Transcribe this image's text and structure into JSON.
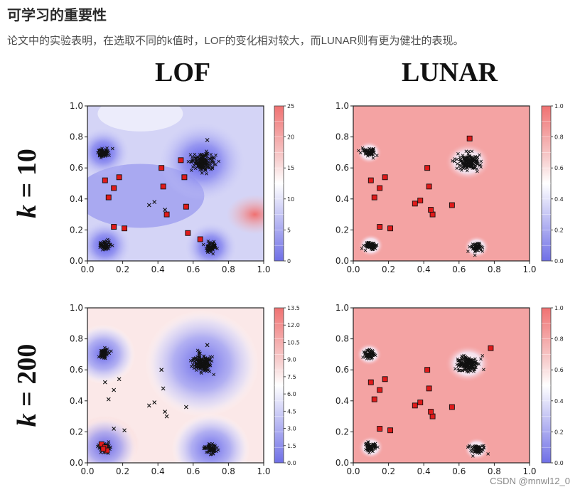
{
  "heading": "可学习的重要性",
  "paragraph": "论文中的实验表明，在选取不同的k值时，LOF的变化相对较大，而LUNAR则有更为健壮的表现。",
  "columns": [
    "LOF",
    "LUNAR"
  ],
  "rows": [
    {
      "k_symbol": "k",
      "eq": "= 10"
    },
    {
      "k_symbol": "k",
      "eq": "= 200"
    }
  ],
  "watermark": "CSDN @mnwl12_0",
  "chart_data": [
    {
      "type": "heatmap",
      "title": "LOF",
      "row": "k = 10",
      "xlim": [
        0,
        1
      ],
      "ylim": [
        0,
        1
      ],
      "xticks": [
        "0.0",
        "0.2",
        "0.4",
        "0.6",
        "0.8",
        "1.0"
      ],
      "yticks": [
        "0.0",
        "0.2",
        "0.4",
        "0.6",
        "0.8",
        "1.0"
      ],
      "colorbar_ticks": [
        "0",
        "5",
        "10",
        "15",
        "20",
        "25"
      ],
      "colorbar_range": [
        0,
        25
      ],
      "clusters": [
        [
          0.09,
          0.7
        ],
        [
          0.65,
          0.64
        ],
        [
          0.1,
          0.1
        ],
        [
          0.7,
          0.09
        ]
      ],
      "outliers": [
        [
          0.1,
          0.52
        ],
        [
          0.12,
          0.41
        ],
        [
          0.15,
          0.47
        ],
        [
          0.18,
          0.54
        ],
        [
          0.15,
          0.22
        ],
        [
          0.21,
          0.21
        ],
        [
          0.42,
          0.6
        ],
        [
          0.43,
          0.48
        ],
        [
          0.45,
          0.3
        ],
        [
          0.53,
          0.65
        ],
        [
          0.56,
          0.35
        ],
        [
          0.55,
          0.54
        ],
        [
          0.57,
          0.18
        ],
        [
          0.64,
          0.14
        ]
      ],
      "scatter_x": [
        [
          0.35,
          0.36
        ],
        [
          0.38,
          0.38
        ],
        [
          0.44,
          0.33
        ],
        [
          0.68,
          0.78
        ]
      ]
    },
    {
      "type": "heatmap",
      "title": "LUNAR",
      "row": "k = 10",
      "xlim": [
        0,
        1
      ],
      "ylim": [
        0,
        1
      ],
      "xticks": [
        "0.0",
        "0.2",
        "0.4",
        "0.6",
        "0.8",
        "1.0"
      ],
      "yticks": [
        "0.0",
        "0.2",
        "0.4",
        "0.6",
        "0.8",
        "1.0"
      ],
      "colorbar_ticks": [
        "0.0",
        "0.2",
        "0.4",
        "0.6",
        "0.8",
        "1.0"
      ],
      "colorbar_range": [
        0,
        1
      ],
      "clusters": [
        [
          0.09,
          0.7
        ],
        [
          0.65,
          0.64
        ],
        [
          0.1,
          0.1
        ],
        [
          0.7,
          0.09
        ]
      ],
      "outliers": [
        [
          0.1,
          0.52
        ],
        [
          0.12,
          0.41
        ],
        [
          0.15,
          0.47
        ],
        [
          0.18,
          0.54
        ],
        [
          0.15,
          0.22
        ],
        [
          0.21,
          0.21
        ],
        [
          0.42,
          0.6
        ],
        [
          0.43,
          0.48
        ],
        [
          0.35,
          0.37
        ],
        [
          0.38,
          0.39
        ],
        [
          0.45,
          0.3
        ],
        [
          0.44,
          0.33
        ],
        [
          0.56,
          0.36
        ],
        [
          0.66,
          0.79
        ]
      ]
    },
    {
      "type": "heatmap",
      "title": "LOF",
      "row": "k = 200",
      "xlim": [
        0,
        1
      ],
      "ylim": [
        0,
        1
      ],
      "xticks": [
        "0.0",
        "0.2",
        "0.4",
        "0.6",
        "0.8",
        "1.0"
      ],
      "yticks": [
        "0.0",
        "0.2",
        "0.4",
        "0.6",
        "0.8",
        "1.0"
      ],
      "colorbar_ticks": [
        "0.0",
        "1.5",
        "3.0",
        "4.5",
        "6.0",
        "7.5",
        "9.0",
        "10.5",
        "12.0",
        "13.5"
      ],
      "colorbar_range": [
        0,
        13.5
      ],
      "clusters": [
        [
          0.09,
          0.7
        ],
        [
          0.65,
          0.64
        ],
        [
          0.1,
          0.1
        ],
        [
          0.7,
          0.09
        ]
      ],
      "outliers": [
        [
          0.08,
          0.12
        ],
        [
          0.1,
          0.1
        ],
        [
          0.11,
          0.08
        ],
        [
          0.09,
          0.09
        ]
      ],
      "scatter_x": [
        [
          0.1,
          0.52
        ],
        [
          0.12,
          0.41
        ],
        [
          0.15,
          0.47
        ],
        [
          0.18,
          0.54
        ],
        [
          0.15,
          0.22
        ],
        [
          0.21,
          0.21
        ],
        [
          0.42,
          0.6
        ],
        [
          0.43,
          0.48
        ],
        [
          0.35,
          0.37
        ],
        [
          0.38,
          0.39
        ],
        [
          0.45,
          0.3
        ],
        [
          0.44,
          0.33
        ],
        [
          0.56,
          0.36
        ],
        [
          0.68,
          0.76
        ]
      ]
    },
    {
      "type": "heatmap",
      "title": "LUNAR",
      "row": "k = 200",
      "xlim": [
        0,
        1
      ],
      "ylim": [
        0,
        1
      ],
      "xticks": [
        "0.0",
        "0.2",
        "0.4",
        "0.6",
        "0.8",
        "1.0"
      ],
      "yticks": [
        "0.0",
        "0.2",
        "0.4",
        "0.6",
        "0.8",
        "1.0"
      ],
      "colorbar_ticks": [
        "0.0",
        "0.2",
        "0.4",
        "0.6",
        "0.8",
        "1.0"
      ],
      "colorbar_range": [
        0,
        1
      ],
      "clusters": [
        [
          0.09,
          0.7
        ],
        [
          0.65,
          0.64
        ],
        [
          0.1,
          0.1
        ],
        [
          0.7,
          0.09
        ]
      ],
      "outliers": [
        [
          0.1,
          0.52
        ],
        [
          0.12,
          0.41
        ],
        [
          0.15,
          0.47
        ],
        [
          0.18,
          0.54
        ],
        [
          0.15,
          0.22
        ],
        [
          0.21,
          0.21
        ],
        [
          0.42,
          0.6
        ],
        [
          0.43,
          0.48
        ],
        [
          0.35,
          0.37
        ],
        [
          0.38,
          0.39
        ],
        [
          0.45,
          0.3
        ],
        [
          0.44,
          0.33
        ],
        [
          0.56,
          0.36
        ],
        [
          0.78,
          0.74
        ]
      ]
    }
  ]
}
